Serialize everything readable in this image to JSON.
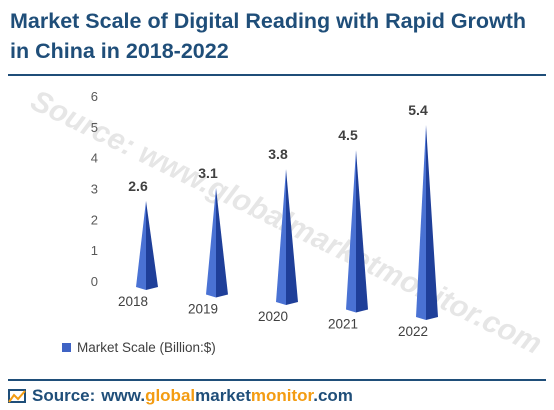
{
  "title": "Market Scale of Digital Reading with Rapid Growth in China in 2018-2022",
  "watermark": "Source: www.globalmarketmonitor.com",
  "legend": {
    "label": "Market Scale (Billion:$)"
  },
  "footer": {
    "prefix": "Source:",
    "url_parts": [
      "www.",
      "global",
      "market",
      "monitor",
      ".com"
    ]
  },
  "colors": {
    "title": "#1f4e79",
    "bar_light": "#4a72d4",
    "bar_dark": "#1f3f99",
    "accent": "#f39c12"
  },
  "chart_data": {
    "type": "bar",
    "categories": [
      "2018",
      "2019",
      "2020",
      "2021",
      "2022"
    ],
    "values": [
      2.6,
      3.1,
      3.8,
      4.5,
      5.4
    ],
    "data_labels": [
      "2.6",
      "3.1",
      "3.8",
      "4.5",
      "5.4"
    ],
    "ylim": [
      0,
      6
    ],
    "yticks": [
      "0",
      "1",
      "2",
      "3",
      "4",
      "5",
      "6"
    ],
    "xlabel": "",
    "ylabel": "",
    "series": [
      {
        "name": "Market Scale (Billion:$)",
        "values": [
          2.6,
          3.1,
          3.8,
          4.5,
          5.4
        ]
      }
    ],
    "legend_position": "bottom-left",
    "grid": false,
    "shape": "pyramid"
  }
}
